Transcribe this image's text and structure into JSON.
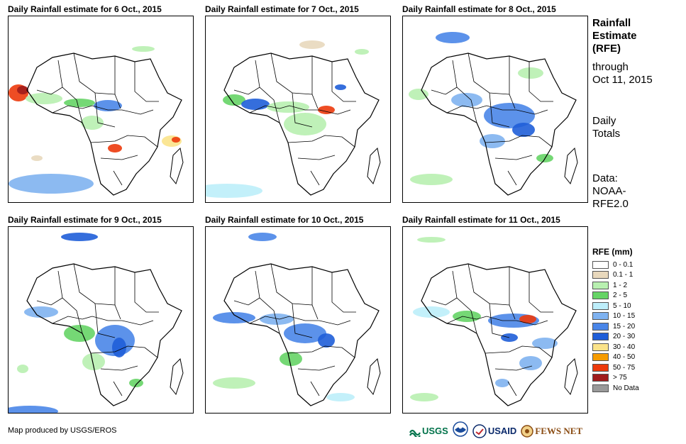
{
  "panels": [
    {
      "title": "Daily Rainfall estimate for 6 Oct., 2015"
    },
    {
      "title": "Daily Rainfall estimate for 7 Oct., 2015"
    },
    {
      "title": "Daily Rainfall estimate for 8 Oct., 2015"
    },
    {
      "title": "Daily Rainfall estimate for 9 Oct., 2015"
    },
    {
      "title": "Daily Rainfall estimate for 10 Oct., 2015"
    },
    {
      "title": "Daily Rainfall estimate for 11 Oct., 2015"
    }
  ],
  "side": {
    "title_line1": "Rainfall",
    "title_line2": "Estimate",
    "title_line3": "(RFE)",
    "through": "through",
    "date": "Oct 11, 2015",
    "totals_line1": "Daily",
    "totals_line2": "Totals",
    "data_line1": "Data:",
    "data_line2": "NOAA-",
    "data_line3": "RFE2.0"
  },
  "legend": {
    "title": "RFE (mm)",
    "items": [
      {
        "label": "0 - 0.1",
        "color": "#ffffff"
      },
      {
        "label": "0.1 - 1",
        "color": "#e8d8bc"
      },
      {
        "label": "1 - 2",
        "color": "#b8f0b0"
      },
      {
        "label": "2 - 5",
        "color": "#66d466"
      },
      {
        "label": "5 - 10",
        "color": "#bdeefa"
      },
      {
        "label": "10 - 15",
        "color": "#7fb2f0"
      },
      {
        "label": "15 - 20",
        "color": "#4a86e8"
      },
      {
        "label": "20 - 30",
        "color": "#1f5ed8"
      },
      {
        "label": "30 - 40",
        "color": "#fbe38a"
      },
      {
        "label": "40 - 50",
        "color": "#f59b00"
      },
      {
        "label": "50 - 75",
        "color": "#ec3a0c"
      },
      {
        "label": "> 75",
        "color": "#a01c1c"
      },
      {
        "label": "No Data",
        "color": "#999999"
      }
    ]
  },
  "footer": {
    "credit": "Map produced by USGS/EROS",
    "logos": [
      "USGS",
      "NOAA",
      "USAID",
      "FEWS NET"
    ]
  }
}
